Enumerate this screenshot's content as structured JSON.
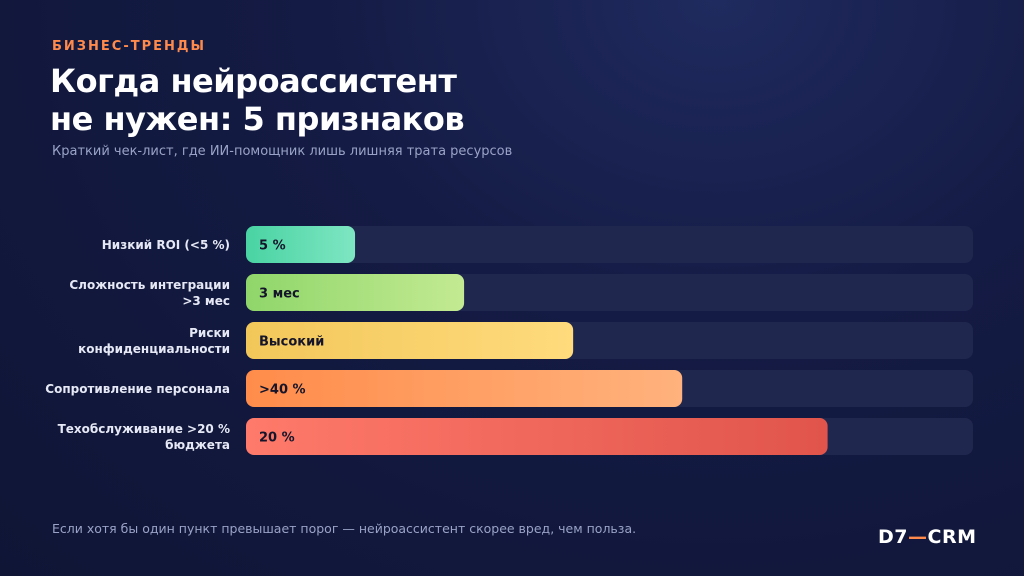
{
  "header": {
    "kicker": "БИЗНЕС-ТРЕНДЫ",
    "title_line1": "Когда нейроассистент",
    "title_line2": "не нужен: 5 признаков",
    "subtitle": "Краткий чек-лист, где ИИ-помощник лишь лишняя трата ресурсов"
  },
  "chart_data": {
    "type": "bar",
    "orientation": "horizontal",
    "grid": false,
    "categories": [
      [
        "Низкий ROI (<5 %)"
      ],
      [
        "Сложность интеграции",
        ">3 мес"
      ],
      [
        "Риски",
        "конфиденциальности"
      ],
      [
        "Сопротивление персонала"
      ],
      [
        "Техобслуживание >20 %",
        "бюджета"
      ]
    ],
    "value_labels": [
      "5 %",
      "3 мес",
      "Высокий",
      ">40 %",
      "20 %"
    ],
    "values": [
      0.15,
      0.3,
      0.45,
      0.6,
      0.8
    ],
    "colors": [
      [
        "#49d3a3",
        "#7ee6c2"
      ],
      [
        "#8fd66a",
        "#c3ea92"
      ],
      [
        "#f2c75a",
        "#ffdb7d"
      ],
      [
        "#ff8c4a",
        "#ffb27d"
      ],
      [
        "#ff7a6a",
        "#e0544c"
      ]
    ],
    "track_color": "#20274e"
  },
  "footer": {
    "note": "Если хотя бы один пункт превышает порог — нейроассистент скорее вред, чем польза.",
    "logo_left": "D7",
    "logo_dash": "—",
    "logo_right": "CRM"
  }
}
